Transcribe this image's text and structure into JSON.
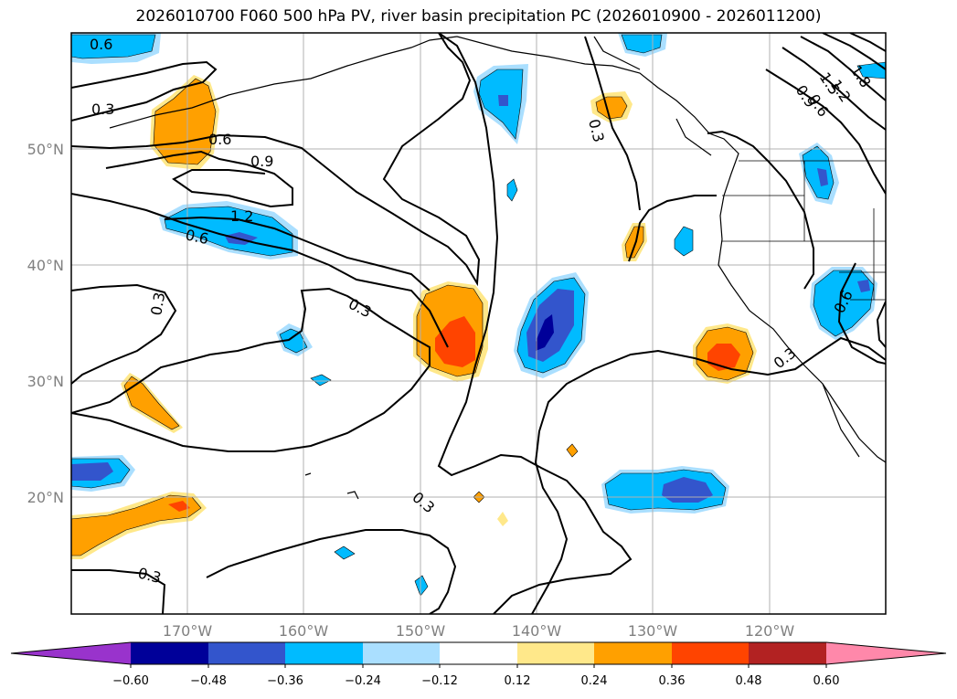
{
  "title": "2026010700 F060 500 hPa PV, river basin precipitation PC (2026010900 - 2026011200)",
  "colors": {
    "neg4": "#9933cc",
    "neg3": "#000099",
    "neg2": "#3355cc",
    "neg1": "#00bbff",
    "neg0": "#aadfff",
    "pos0": "#ffe88a",
    "pos1": "#ffa000",
    "pos2": "#ff4400",
    "pos3": "#b22222",
    "pos4": "#ff88aa",
    "grid": "#b0b0b0",
    "contour": "#000000",
    "axis_label": "#808080"
  },
  "axes": {
    "lat_labels": [
      "50°N",
      "40°N",
      "30°N",
      "20°N"
    ],
    "lon_labels": [
      "170°W",
      "160°W",
      "150°W",
      "140°W",
      "130°W",
      "120°W"
    ]
  },
  "colorbar": {
    "ticks": [
      "−0.60",
      "−0.48",
      "−0.36",
      "−0.24",
      "−0.12",
      "0.12",
      "0.24",
      "0.36",
      "0.48",
      "0.60"
    ]
  },
  "contour_labels": [
    "0.6",
    "0.3",
    "0.6",
    "0.9",
    "1.2",
    "0.6",
    "0.3",
    "0.3",
    "0.3",
    "0.3",
    "0.3",
    "0.6",
    "0.3",
    "1.5",
    "0.9",
    "0.6",
    "1.2",
    "1.8"
  ]
}
